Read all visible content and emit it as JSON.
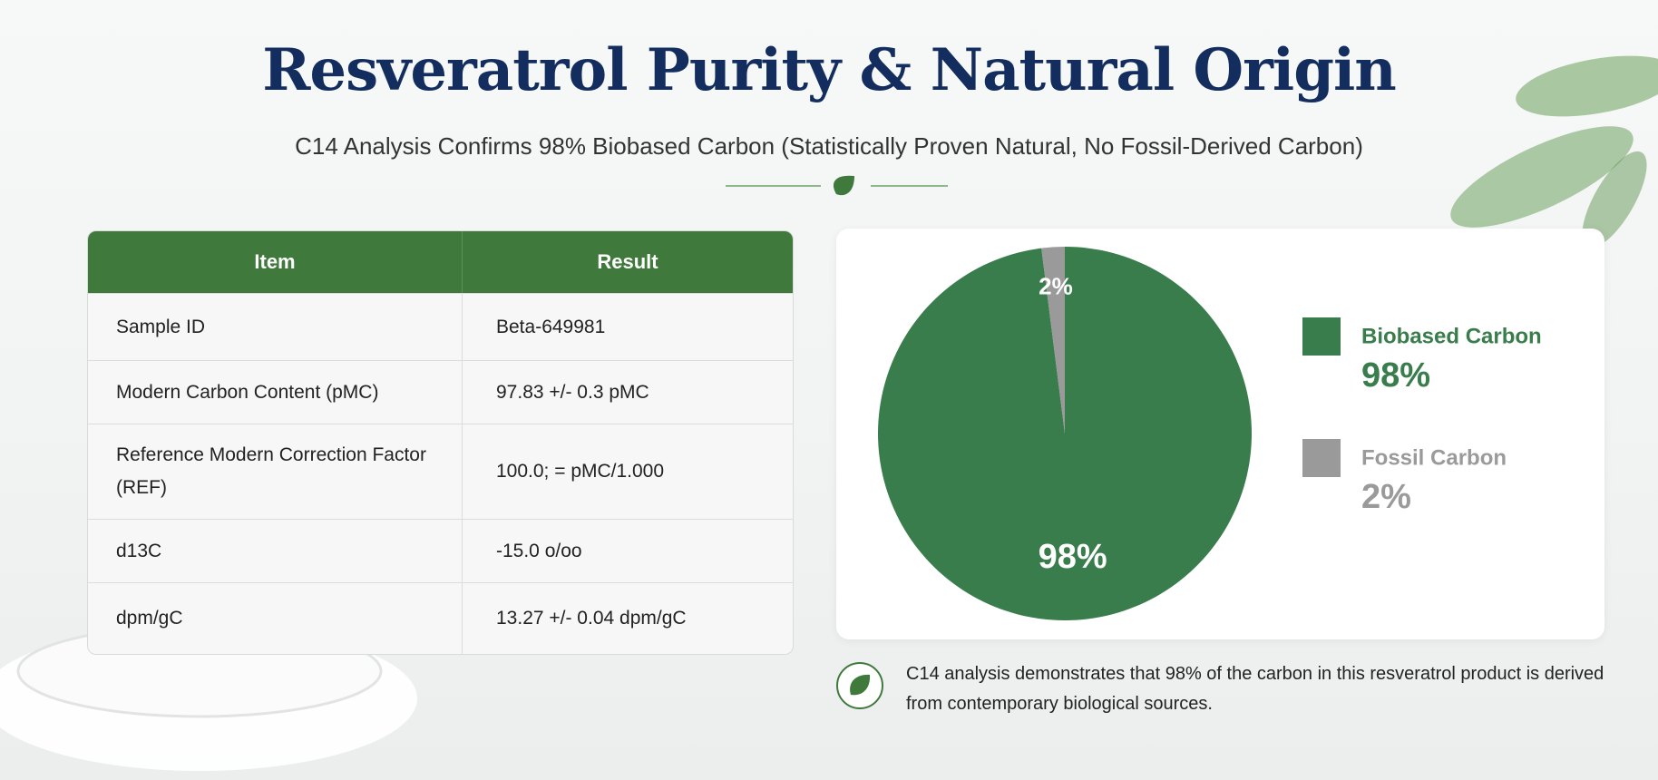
{
  "header": {
    "title": "Resveratrol Purity & Natural Origin",
    "subtitle": "C14 Analysis Confirms 98% Biobased Carbon (Statistically Proven Natural, No Fossil-Derived Carbon)"
  },
  "table": {
    "header": [
      "Item",
      "Result"
    ],
    "rows": [
      [
        "Sample ID",
        "Beta-649981"
      ],
      [
        "Modern Carbon Content (pMC)",
        "97.83 +/- 0.3 pMC"
      ],
      [
        "Reference Modern Correction Factor (REF)",
        "100.0; = pMC/1.000"
      ],
      [
        "d13C",
        "-15.0 o/oo"
      ],
      [
        "dpm/gC",
        "13.27 +/- 0.04 dpm/gC"
      ]
    ]
  },
  "chart_data": {
    "type": "pie",
    "categories": [
      "Biobased Carbon",
      "Fossil Carbon"
    ],
    "values": [
      98,
      2
    ],
    "value_labels": [
      "98%",
      "2%"
    ],
    "colors": [
      "#3a7d4c",
      "#9a9a9a"
    ]
  },
  "note": "C14 analysis demonstrates that 98% of the carbon in this resveratrol product is derived from contemporary biological sources."
}
